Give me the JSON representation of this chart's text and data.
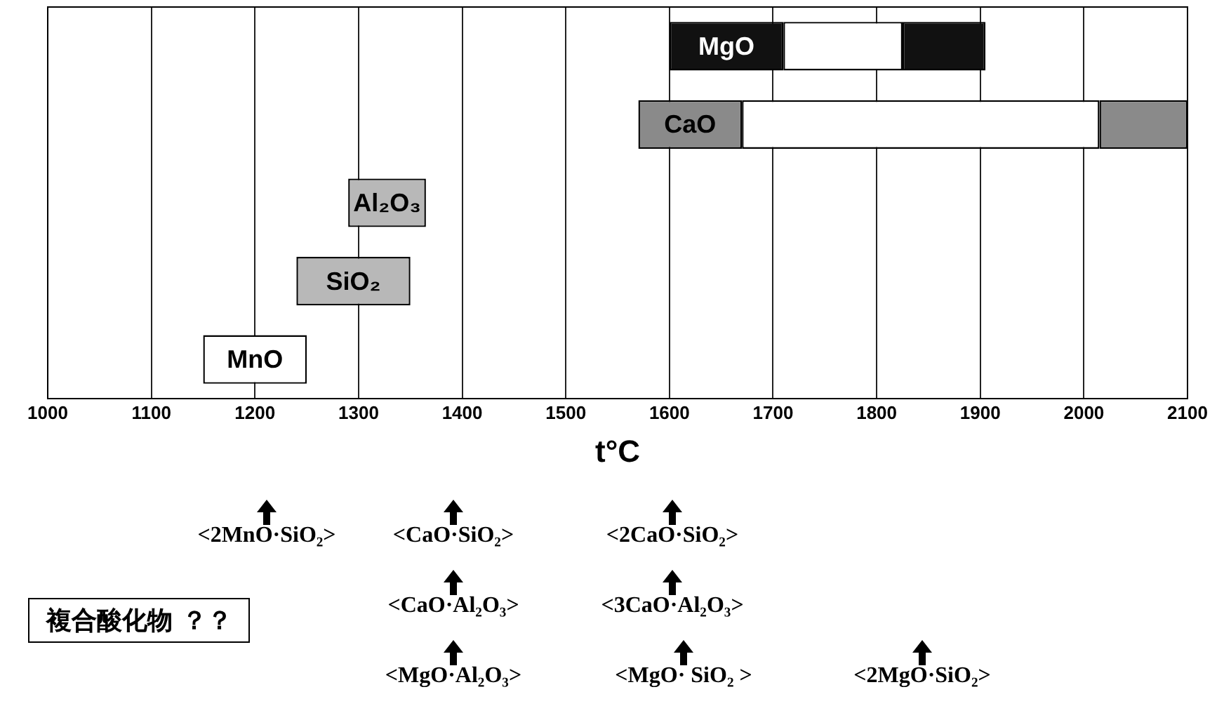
{
  "chart_data": {
    "type": "bar",
    "orientation": "horizontal",
    "xlabel": "t°C",
    "categories": [
      "MgO",
      "CaO",
      "Al₂O₃",
      "SiO₂",
      "MnO"
    ],
    "series": [
      {
        "colors": [
          "#111111",
          "#8a8a8a",
          "#b8b8b8",
          "#b8b8b8",
          "#ffffff"
        ],
        "base": [
          1600,
          1570,
          1290,
          1240,
          1150
        ],
        "values": [
          110,
          100,
          75,
          110,
          100
        ]
      },
      {
        "color": "#ffffff",
        "base": [
          1710,
          1670,
          null,
          null,
          null
        ],
        "values": [
          115,
          345,
          null,
          null,
          null
        ]
      },
      {
        "colors": [
          "#111111",
          "#8a8a8a",
          null,
          null,
          null
        ],
        "base": [
          1825,
          2015,
          null,
          null,
          null
        ],
        "values": [
          80,
          85,
          null,
          null,
          null
        ]
      }
    ],
    "xlim": [
      1000,
      2100
    ],
    "xticks": [
      1000,
      1100,
      1200,
      1300,
      1400,
      1500,
      1600,
      1700,
      1800,
      1900,
      2000,
      2100
    ],
    "grid": "x",
    "tick_labels": "x",
    "annotations": [
      "複合酸化物 ？？",
      "<2MnO·SiO₂>",
      "<CaO·SiO₂>",
      "<2CaO·SiO₂>",
      "<CaO·Al₂O₃>",
      "<3CaO·Al₂O₃>",
      "<MgO·Al₂O₃>",
      "<MgO· SiO₂ >",
      "<2MgO·SiO₂>"
    ]
  }
}
